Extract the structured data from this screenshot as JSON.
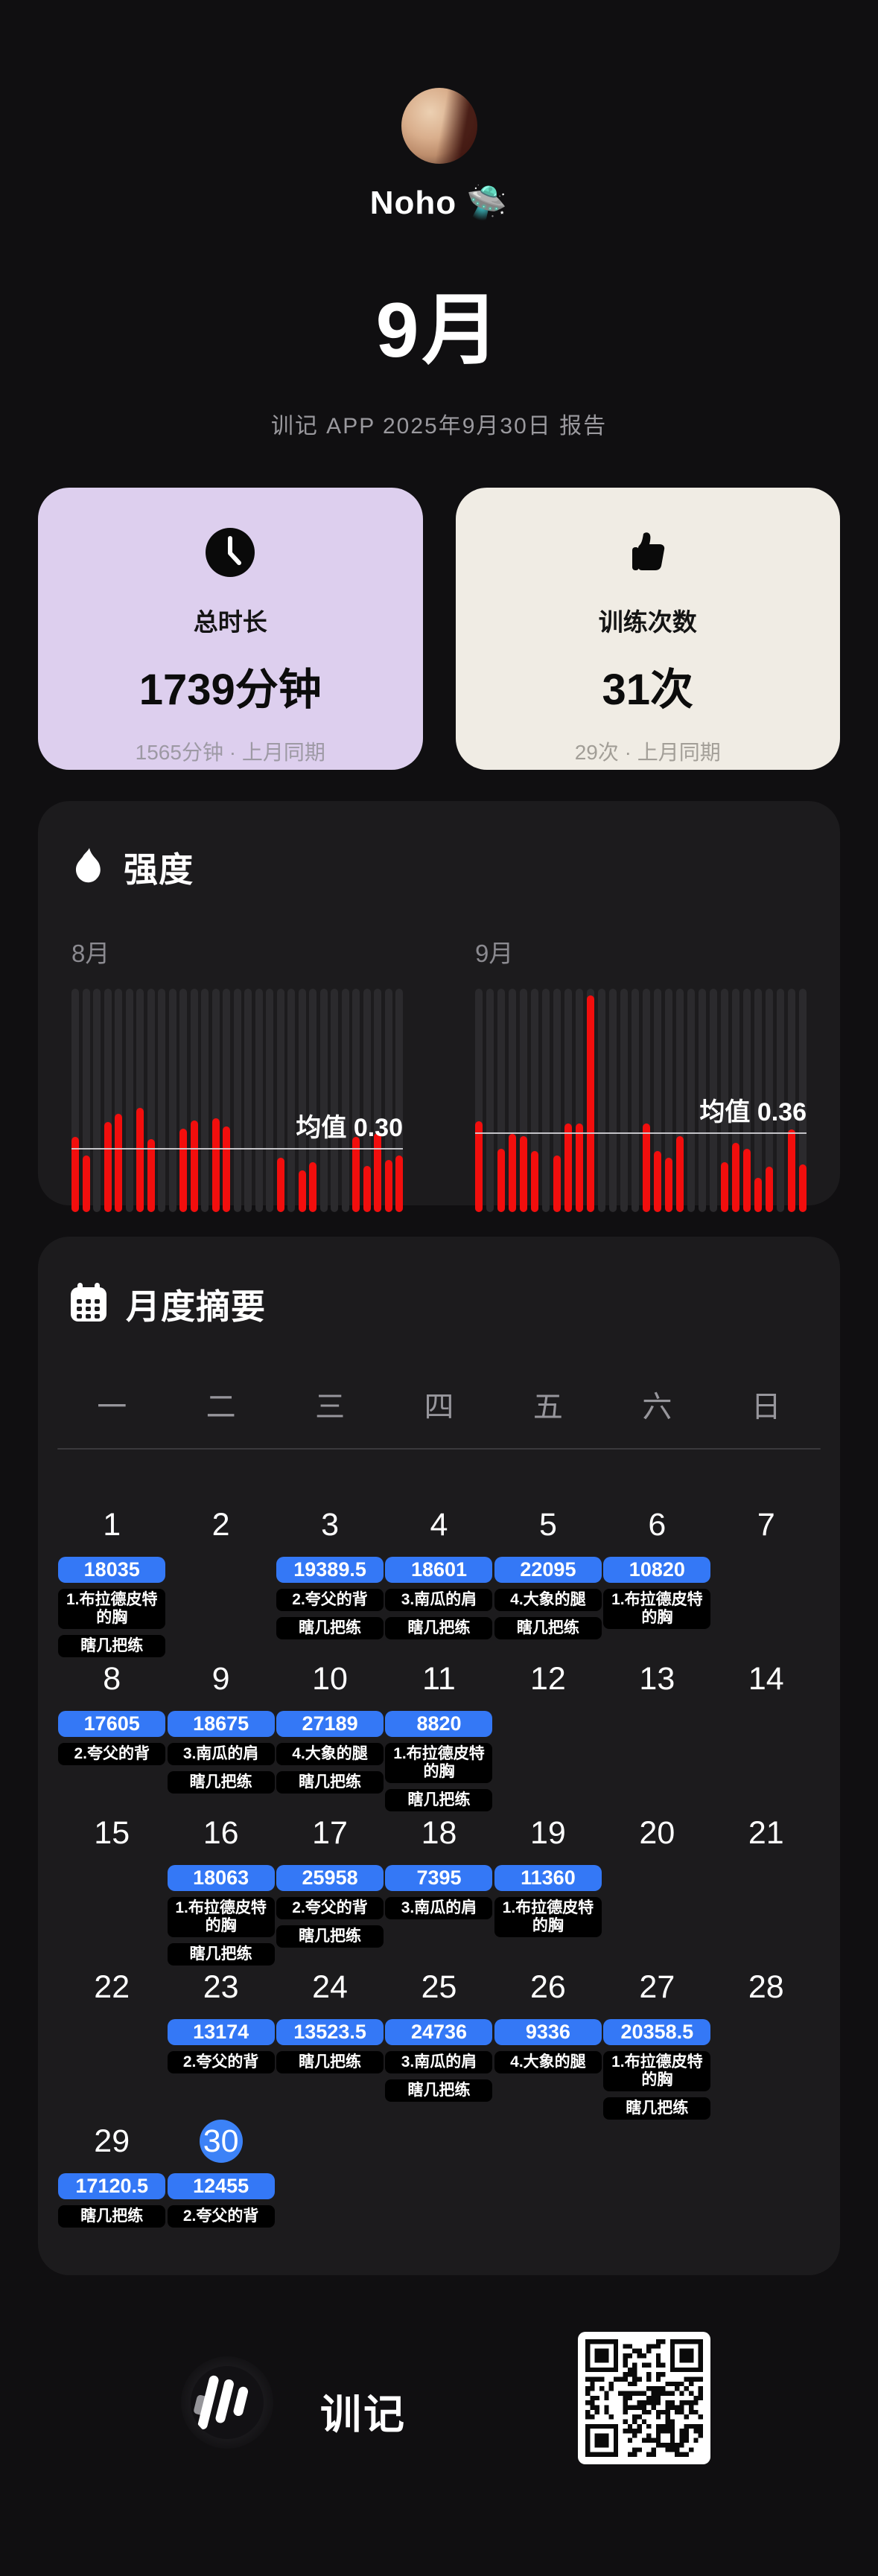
{
  "header": {
    "name": "Noho 🛸",
    "month_title": "9月",
    "report_line": "训记 APP 2025年9月30日 报告"
  },
  "stats": {
    "duration": {
      "icon": "clock-icon",
      "label": "总时长",
      "value": "1739分钟",
      "compare": "1565分钟 · 上月同期",
      "bg": "#ddcfee"
    },
    "sessions": {
      "icon": "thumbs-up-icon",
      "label": "训练次数",
      "value": "31次",
      "compare": "29次 · 上月同期",
      "bg": "#f0ece4"
    }
  },
  "intensity": {
    "icon": "flame-icon",
    "title": "强度",
    "bar_color": "#f20e0d",
    "slot_color": "#2b2a2d",
    "chart_data": [
      {
        "type": "bar",
        "title": "8月",
        "mean": 0.3,
        "mean_label": "均值 0.30",
        "days_in_month": 31,
        "scale_max": 1.07,
        "bars": [
          [
            1,
            0.36
          ],
          [
            2,
            0.27
          ],
          [
            4,
            0.43
          ],
          [
            5,
            0.47
          ],
          [
            7,
            0.5
          ],
          [
            8,
            0.35
          ],
          [
            11,
            0.4
          ],
          [
            12,
            0.44
          ],
          [
            14,
            0.45
          ],
          [
            15,
            0.41
          ],
          [
            20,
            0.26
          ],
          [
            22,
            0.2
          ],
          [
            23,
            0.24
          ],
          [
            27,
            0.36
          ],
          [
            28,
            0.22
          ],
          [
            29,
            0.38
          ],
          [
            30,
            0.25
          ],
          [
            31,
            0.27
          ]
        ]
      },
      {
        "type": "bar",
        "title": "9月",
        "mean": 0.36,
        "mean_label": "均值 0.36",
        "days_in_month": 30,
        "scale_max": 1.03,
        "bars": [
          [
            1,
            0.42
          ],
          [
            3,
            0.29
          ],
          [
            4,
            0.36
          ],
          [
            5,
            0.35
          ],
          [
            6,
            0.28
          ],
          [
            8,
            0.26
          ],
          [
            9,
            0.41
          ],
          [
            10,
            0.41
          ],
          [
            11,
            1.0
          ],
          [
            16,
            0.41
          ],
          [
            17,
            0.28
          ],
          [
            18,
            0.25
          ],
          [
            19,
            0.35
          ],
          [
            23,
            0.23
          ],
          [
            24,
            0.32
          ],
          [
            25,
            0.29
          ],
          [
            26,
            0.16
          ],
          [
            27,
            0.21
          ],
          [
            29,
            0.38
          ],
          [
            30,
            0.22
          ]
        ]
      }
    ]
  },
  "calendar": {
    "icon": "calendar-icon",
    "title": "月度摘要",
    "weekdays": [
      "一",
      "二",
      "三",
      "四",
      "五",
      "六",
      "日"
    ],
    "badge_color": "#3478f6",
    "current_day": 30,
    "weeks": [
      [
        {
          "day": 1,
          "value": "18035",
          "tags": [
            "1.布拉德皮特的胸",
            "瞎几把练"
          ]
        },
        {
          "day": 2
        },
        {
          "day": 3,
          "value": "19389.5",
          "tags": [
            "2.夸父的背",
            "瞎几把练"
          ]
        },
        {
          "day": 4,
          "value": "18601",
          "tags": [
            "3.南瓜的肩",
            "瞎几把练"
          ]
        },
        {
          "day": 5,
          "value": "22095",
          "tags": [
            "4.大象的腿",
            "瞎几把练"
          ]
        },
        {
          "day": 6,
          "value": "10820",
          "tags": [
            "1.布拉德皮特的胸"
          ]
        },
        {
          "day": 7
        }
      ],
      [
        {
          "day": 8,
          "value": "17605",
          "tags": [
            "2.夸父的背"
          ]
        },
        {
          "day": 9,
          "value": "18675",
          "tags": [
            "3.南瓜的肩",
            "瞎几把练"
          ]
        },
        {
          "day": 10,
          "value": "27189",
          "tags": [
            "4.大象的腿",
            "瞎几把练"
          ]
        },
        {
          "day": 11,
          "value": "8820",
          "tags": [
            "1.布拉德皮特的胸",
            "瞎几把练"
          ]
        },
        {
          "day": 12
        },
        {
          "day": 13
        },
        {
          "day": 14
        }
      ],
      [
        {
          "day": 15
        },
        {
          "day": 16,
          "value": "18063",
          "tags": [
            "1.布拉德皮特的胸",
            "瞎几把练"
          ]
        },
        {
          "day": 17,
          "value": "25958",
          "tags": [
            "2.夸父的背",
            "瞎几把练"
          ]
        },
        {
          "day": 18,
          "value": "7395",
          "tags": [
            "3.南瓜的肩"
          ]
        },
        {
          "day": 19,
          "value": "11360",
          "tags": [
            "1.布拉德皮特的胸"
          ]
        },
        {
          "day": 20
        },
        {
          "day": 21
        }
      ],
      [
        {
          "day": 22
        },
        {
          "day": 23,
          "value": "13174",
          "tags": [
            "2.夸父的背"
          ]
        },
        {
          "day": 24,
          "value": "13523.5",
          "tags": [
            "瞎几把练"
          ]
        },
        {
          "day": 25,
          "value": "24736",
          "tags": [
            "3.南瓜的肩",
            "瞎几把练"
          ]
        },
        {
          "day": 26,
          "value": "9336",
          "tags": [
            "4.大象的腿"
          ]
        },
        {
          "day": 27,
          "value": "20358.5",
          "tags": [
            "1.布拉德皮特的胸",
            "瞎几把练"
          ]
        },
        {
          "day": 28
        }
      ],
      [
        {
          "day": 29,
          "value": "17120.5",
          "tags": [
            "瞎几把练"
          ]
        },
        {
          "day": 30,
          "value": "12455",
          "tags": [
            "2.夸父的背"
          ]
        },
        {
          "day": null
        },
        {
          "day": null
        },
        {
          "day": null
        },
        {
          "day": null
        },
        {
          "day": null
        }
      ]
    ]
  },
  "footer": {
    "logo": "xunji-logo-icon",
    "app_name": "训记",
    "qr": "qr-code"
  }
}
